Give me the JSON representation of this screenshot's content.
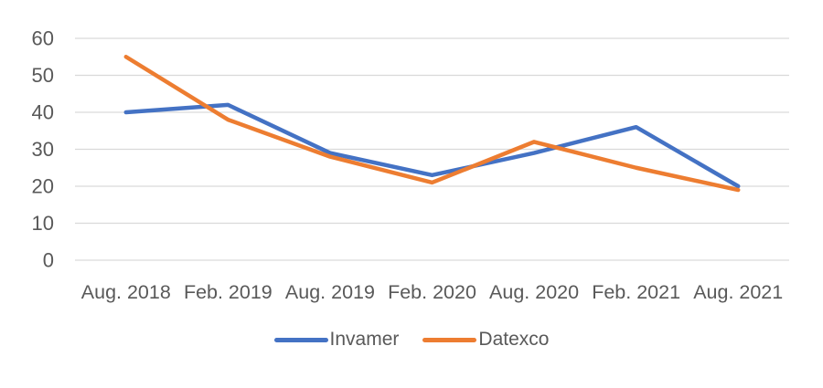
{
  "chart_data": {
    "type": "line",
    "categories": [
      "Aug. 2018",
      "Feb. 2019",
      "Aug. 2019",
      "Feb. 2020",
      "Aug. 2020",
      "Feb. 2021",
      "Aug. 2021"
    ],
    "series": [
      {
        "name": "Invamer",
        "color": "#4472C4",
        "values": [
          40,
          42,
          29,
          23,
          29,
          36,
          20
        ]
      },
      {
        "name": "Datexco",
        "color": "#ED7D31",
        "values": [
          55,
          38,
          28,
          21,
          32,
          25,
          19
        ]
      }
    ],
    "title": "",
    "xlabel": "",
    "ylabel": "",
    "ylim": [
      0,
      60
    ],
    "y_ticks": [
      0,
      10,
      20,
      30,
      40,
      50,
      60
    ],
    "grid": true,
    "legend_position": "bottom"
  },
  "styles": {
    "background": "#FFFFFF",
    "gridline_color": "#D9D9D9",
    "label_color": "#595959"
  }
}
